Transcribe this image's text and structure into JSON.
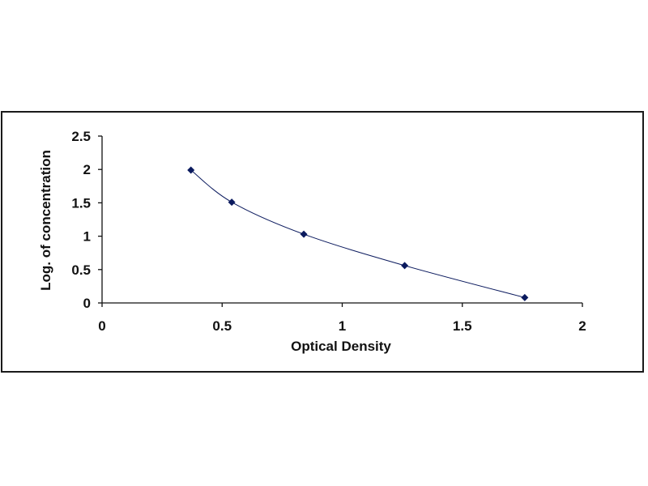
{
  "chart_data": {
    "type": "scatter",
    "xlabel": "Optical Density",
    "ylabel": "Log. of concentration",
    "xlim": [
      0,
      2
    ],
    "ylim": [
      0,
      2.5
    ],
    "x_ticks": [
      "0",
      "0.5",
      "1",
      "1.5",
      "2"
    ],
    "y_ticks": [
      "0",
      "0.5",
      "1",
      "1.5",
      "2",
      "2.5"
    ],
    "grid": false,
    "legend": "none",
    "trendline": "smooth curve",
    "series": [
      {
        "x": [
          0.37,
          0.54,
          0.84,
          1.26,
          1.76
        ],
        "y": [
          1.99,
          1.51,
          1.03,
          0.56,
          0.08
        ]
      }
    ],
    "colors": {
      "marker": "#0b1a5e",
      "line": "#0b1a5e",
      "axis": "#111111"
    }
  }
}
